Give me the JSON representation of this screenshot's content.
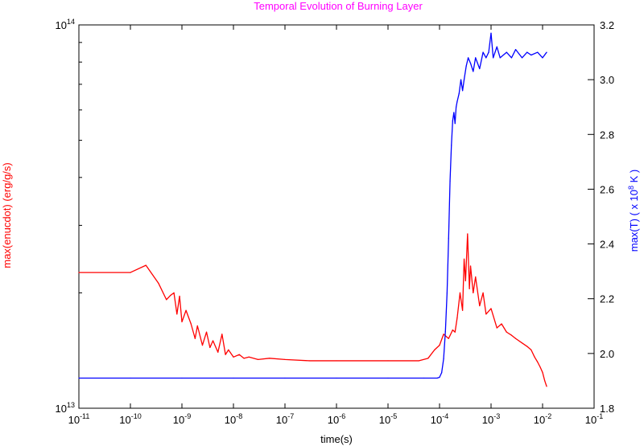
{
  "chart_data": {
    "type": "line",
    "title": "Temporal Evolution of Burning Layer",
    "title_color": "#ff00ff",
    "xlabel": "time(s)",
    "ylabel_left": "max(enucdot) (erg/g/s)",
    "ylabel_left_color": "#ff0000",
    "ylabel_right": {
      "prefix": "max(T)  ( x 10",
      "superscript": "8",
      "suffix": " K )"
    },
    "ylabel_right_color": "#0000ff",
    "x_scale": "log",
    "xlim": [
      1e-11,
      0.1
    ],
    "x_ticks": [
      {
        "base": "10",
        "exp": "-11"
      },
      {
        "base": "10",
        "exp": "-10"
      },
      {
        "base": "10",
        "exp": "-9"
      },
      {
        "base": "10",
        "exp": "-8"
      },
      {
        "base": "10",
        "exp": "-7"
      },
      {
        "base": "10",
        "exp": "-6"
      },
      {
        "base": "10",
        "exp": "-5"
      },
      {
        "base": "10",
        "exp": "-4"
      },
      {
        "base": "10",
        "exp": "-3"
      },
      {
        "base": "10",
        "exp": "-2"
      },
      {
        "base": "10",
        "exp": "-1"
      }
    ],
    "y_left_scale": "log",
    "y_left_lim": [
      10000000000000.0,
      100000000000000.0
    ],
    "y_left_ticks": [
      {
        "base": "10",
        "exp": "13"
      },
      {
        "base": "10",
        "exp": "14"
      }
    ],
    "y_right_lim": [
      1.8,
      3.2
    ],
    "y_right_ticks": [
      "1.8",
      "2.0",
      "2.2",
      "2.4",
      "2.6",
      "2.8",
      "3.0",
      "3.2"
    ],
    "grid": false,
    "legend": "none",
    "series": [
      {
        "axis": "left",
        "color": "#ff0000",
        "x": [
          1e-11,
          1e-10,
          2e-10,
          3.5e-10,
          5e-10,
          6e-10,
          7e-10,
          8e-10,
          9e-10,
          1e-09,
          1.2e-09,
          1.5e-09,
          1.8e-09,
          2e-09,
          2.5e-09,
          3e-09,
          3.5e-09,
          4e-09,
          5e-09,
          6e-09,
          7e-09,
          8e-09,
          1e-08,
          1.3e-08,
          1.6e-08,
          2e-08,
          3e-08,
          5e-08,
          1e-07,
          3e-07,
          1e-06,
          1e-05,
          4e-05,
          6e-05,
          8e-05,
          0.0001,
          0.00012,
          0.00015,
          0.00018,
          0.0002,
          0.00022,
          0.00025,
          0.00028,
          0.0003,
          0.00032,
          0.00035,
          0.00038,
          0.0004,
          0.00045,
          0.0005,
          0.0006,
          0.0007,
          0.0008,
          0.001,
          0.0013,
          0.0016,
          0.002,
          0.0025,
          0.003,
          0.004,
          0.005,
          0.006,
          0.007,
          0.008,
          0.009,
          0.01,
          0.011,
          0.012
        ],
        "y": [
          22600000000000.0,
          22600000000000.0,
          23600000000000.0,
          21200000000000.0,
          19200000000000.0,
          19700000000000.0,
          20000000000000.0,
          17600000000000.0,
          19600000000000.0,
          16800000000000.0,
          18000000000000.0,
          16600000000000.0,
          15200000000000.0,
          16400000000000.0,
          14600000000000.0,
          15800000000000.0,
          14400000000000.0,
          15000000000000.0,
          14000000000000.0,
          15600000000000.0,
          13800000000000.0,
          14200000000000.0,
          13600000000000.0,
          13800000000000.0,
          13500000000000.0,
          13600000000000.0,
          13400000000000.0,
          13500000000000.0,
          13400000000000.0,
          13300000000000.0,
          13300000000000.0,
          13300000000000.0,
          13300000000000.0,
          13500000000000.0,
          14200000000000.0,
          14600000000000.0,
          15600000000000.0,
          15200000000000.0,
          16000000000000.0,
          15800000000000.0,
          17200000000000.0,
          20000000000000.0,
          18000000000000.0,
          24500000000000.0,
          21500000000000.0,
          28500000000000.0,
          20500000000000.0,
          23500000000000.0,
          20000000000000.0,
          22000000000000.0,
          18500000000000.0,
          20000000000000.0,
          17600000000000.0,
          18200000000000.0,
          16200000000000.0,
          16600000000000.0,
          15800000000000.0,
          15500000000000.0,
          15200000000000.0,
          14800000000000.0,
          14500000000000.0,
          14200000000000.0,
          13600000000000.0,
          13200000000000.0,
          12800000000000.0,
          12400000000000.0,
          11800000000000.0,
          11400000000000.0
        ]
      },
      {
        "axis": "right",
        "color": "#0000ff",
        "x": [
          1e-11,
          1e-10,
          1e-09,
          1e-08,
          1e-07,
          1e-06,
          1e-05,
          5e-05,
          9e-05,
          0.0001,
          0.00011,
          0.00012,
          0.00013,
          0.00014,
          0.00015,
          0.00016,
          0.00017,
          0.00018,
          0.00019,
          0.0002,
          0.00021,
          0.00022,
          0.00024,
          0.00026,
          0.00028,
          0.0003,
          0.00033,
          0.00036,
          0.0004,
          0.00045,
          0.0005,
          0.0006,
          0.0007,
          0.0008,
          0.0009,
          0.001,
          0.0011,
          0.0013,
          0.0015,
          0.002,
          0.0025,
          0.003,
          0.004,
          0.005,
          0.006,
          0.008,
          0.01,
          0.012
        ],
        "y": [
          1.91,
          1.91,
          1.91,
          1.91,
          1.91,
          1.91,
          1.91,
          1.91,
          1.91,
          1.913,
          1.93,
          1.98,
          2.08,
          2.22,
          2.42,
          2.63,
          2.76,
          2.85,
          2.88,
          2.84,
          2.9,
          2.92,
          2.95,
          3.0,
          2.96,
          3.0,
          3.05,
          3.08,
          3.06,
          3.03,
          3.08,
          3.04,
          3.1,
          3.08,
          3.1,
          3.17,
          3.08,
          3.12,
          3.08,
          3.1,
          3.08,
          3.11,
          3.08,
          3.1,
          3.09,
          3.1,
          3.08,
          3.1
        ]
      }
    ]
  }
}
